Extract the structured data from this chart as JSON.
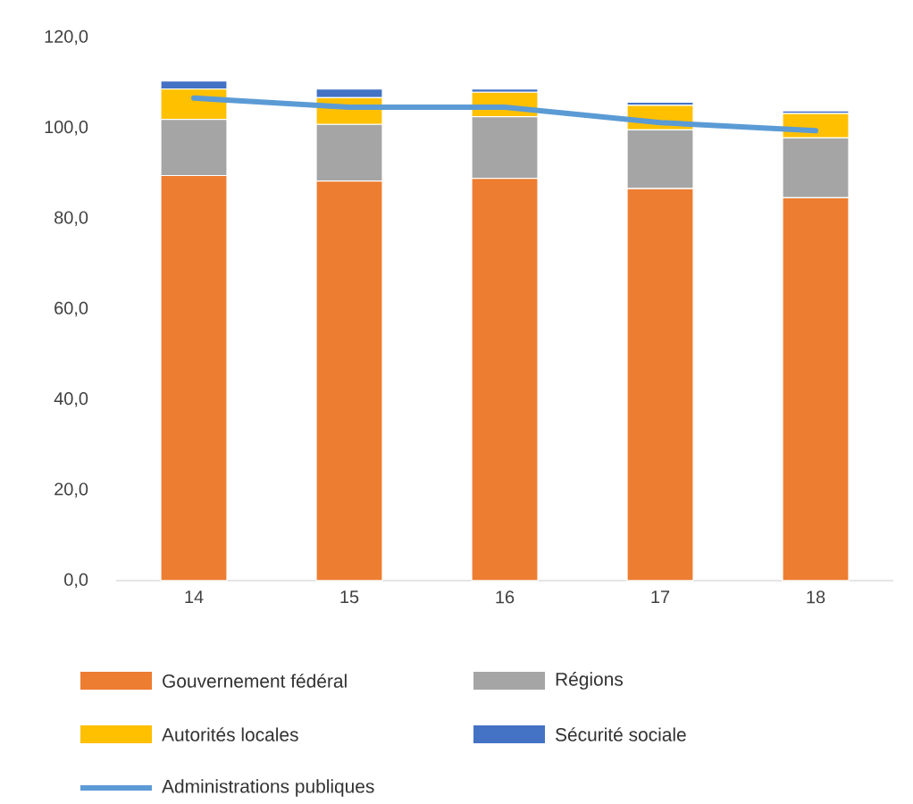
{
  "chart_data": {
    "type": "bar",
    "stacked": true,
    "legend": "bottom",
    "categories": [
      "14",
      "15",
      "16",
      "17",
      "18"
    ],
    "ylim": [
      0,
      120
    ],
    "yticks": [
      {
        "value": 0,
        "label": "0,0"
      },
      {
        "value": 20,
        "label": "20,0"
      },
      {
        "value": 40,
        "label": "40,0"
      },
      {
        "value": 60,
        "label": "60,0"
      },
      {
        "value": 80,
        "label": "80,0"
      },
      {
        "value": 100,
        "label": "100,0"
      },
      {
        "value": 120,
        "label": "120,0"
      }
    ],
    "series": [
      {
        "name": "Gouvernement fédéral",
        "color": "#ed7d31",
        "values": [
          89.5,
          88.3,
          88.9,
          86.6,
          84.6
        ]
      },
      {
        "name": "Régions",
        "color": "#a5a5a5",
        "values": [
          12.4,
          12.5,
          13.6,
          13.0,
          13.2
        ]
      },
      {
        "name": "Autorités locales",
        "color": "#ffc000",
        "values": [
          6.7,
          5.9,
          5.4,
          5.4,
          5.4
        ]
      },
      {
        "name": "Sécurité sociale",
        "color": "#4472c4",
        "values": [
          1.8,
          1.9,
          0.7,
          0.7,
          0.6
        ]
      },
      {
        "name": "Administrations publiques",
        "type": "line",
        "color": "#5b9bd5",
        "values": [
          106.6,
          104.6,
          104.6,
          101.2,
          99.4
        ]
      }
    ]
  }
}
